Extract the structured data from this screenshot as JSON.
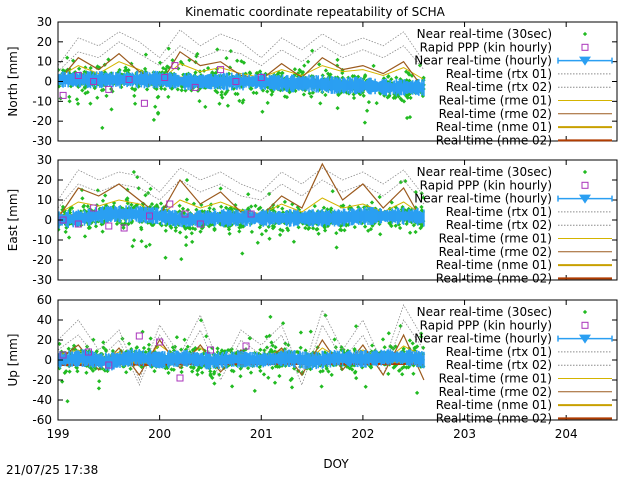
{
  "title": "Kinematic coordinate repeatability of SCHA",
  "xlabel": "DOY",
  "timestamp": "21/07/25 17:38",
  "colors": {
    "near_rt_30s": "#22bb22",
    "rapid_ppp": "#aa33bb",
    "near_rt_hourly": "#2a9ff2",
    "rtx": "#8c8c8c",
    "rme01": "#d4b400",
    "rme02": "#9b5a1e",
    "nme01": "#c8a000",
    "nme02": "#b03c00"
  },
  "legend": [
    {
      "key": "near_rt_30s",
      "label": "Near real-time (30sec)",
      "style": "dots"
    },
    {
      "key": "rapid_ppp",
      "label": "Rapid PPP (kin hourly)",
      "style": "open-square"
    },
    {
      "key": "near_rt_hourly",
      "label": "Near real-time (hourly)",
      "style": "triangle-errorbar"
    },
    {
      "key": "rtx",
      "label": "Real-time (rtx 01)",
      "style": "dotted"
    },
    {
      "key": "rtx",
      "label": "Real-time (rtx 02)",
      "style": "dotted"
    },
    {
      "key": "rme01",
      "label": "Real-time (rme 01)",
      "style": "thin-line"
    },
    {
      "key": "rme02",
      "label": "Real-time (rme 02)",
      "style": "thin-line"
    },
    {
      "key": "nme01",
      "label": "Real-time (nme 01)",
      "style": "thick-line"
    },
    {
      "key": "nme02",
      "label": "Real-time (nme 02)",
      "style": "thick-line"
    }
  ],
  "chart_data": [
    {
      "type": "scatter",
      "panel": "north",
      "ylabel": "North [mm]",
      "xlim": [
        199,
        204.5
      ],
      "ylim": [
        -30,
        30
      ],
      "xticks": [
        "199",
        "200",
        "201",
        "202",
        "203",
        "204"
      ],
      "yticks": [
        "-30",
        "-20",
        "-10",
        "0",
        "10",
        "20",
        "30"
      ],
      "data_end_doy": 202.6,
      "grid": false,
      "legend_position": "top-right",
      "series": [
        {
          "name": "Real-time (rtx 01)",
          "x": [
            199.0,
            199.2,
            199.4,
            199.6,
            199.8,
            200.0,
            200.2,
            200.4,
            200.6,
            200.8,
            201.0,
            201.2,
            201.4,
            201.6,
            201.8,
            202.0,
            202.2,
            202.4,
            202.6
          ],
          "y": [
            8,
            22,
            18,
            25,
            20,
            12,
            26,
            18,
            24,
            20,
            12,
            22,
            16,
            24,
            18,
            22,
            18,
            25,
            10
          ]
        },
        {
          "name": "Real-time (rtx 02)",
          "x": [
            199.0,
            199.2,
            199.4,
            199.6,
            199.8,
            200.0,
            200.2,
            200.4,
            200.6,
            200.8,
            201.0,
            201.2,
            201.4,
            201.6,
            201.8,
            202.0,
            202.2,
            202.4,
            202.6
          ],
          "y": [
            5,
            15,
            12,
            20,
            14,
            8,
            18,
            12,
            16,
            14,
            8,
            16,
            10,
            18,
            12,
            16,
            12,
            18,
            6
          ]
        },
        {
          "name": "Real-time (rme 01)",
          "x": [
            199.0,
            199.2,
            199.4,
            199.6,
            199.8,
            200.0,
            200.2,
            200.4,
            200.6,
            200.8,
            201.0,
            201.2,
            201.4,
            201.6,
            201.8,
            202.0,
            202.2,
            202.4,
            202.6
          ],
          "y": [
            2,
            8,
            4,
            10,
            6,
            0,
            9,
            5,
            7,
            4,
            2,
            6,
            3,
            8,
            5,
            6,
            3,
            7,
            1
          ]
        },
        {
          "name": "Real-time (rme 02)",
          "x": [
            199.0,
            199.2,
            199.4,
            199.6,
            199.8,
            200.0,
            200.2,
            200.4,
            200.6,
            200.8,
            201.0,
            201.2,
            201.4,
            201.6,
            201.8,
            202.0,
            202.2,
            202.4,
            202.6
          ],
          "y": [
            0,
            12,
            6,
            14,
            5,
            -2,
            15,
            8,
            10,
            3,
            1,
            9,
            2,
            12,
            6,
            8,
            4,
            10,
            -4
          ]
        },
        {
          "name": "Real-time (nme 01)",
          "x": [
            199.0,
            199.3,
            199.6,
            199.9,
            200.2,
            200.5,
            200.8,
            201.1,
            201.4,
            201.7,
            202.0,
            202.3,
            202.6
          ],
          "y": [
            1,
            2,
            1,
            0,
            2,
            1,
            0,
            1,
            0,
            -1,
            -2,
            -3,
            -3
          ]
        },
        {
          "name": "Real-time (nme 02)",
          "x": [
            199.0,
            199.3,
            199.6,
            199.9,
            200.2,
            200.5,
            200.8,
            201.1,
            201.4,
            201.7,
            202.0,
            202.3,
            202.6
          ],
          "y": [
            0,
            1,
            0,
            -1,
            1,
            0,
            -1,
            0,
            -1,
            -2,
            -3,
            -4,
            -4
          ]
        },
        {
          "name": "Near real-time (hourly)",
          "x": [
            199.0,
            199.25,
            199.5,
            199.75,
            200.0,
            200.25,
            200.5,
            200.75,
            201.0,
            201.25,
            201.5,
            201.75,
            202.0,
            202.25,
            202.5,
            202.6
          ],
          "y": [
            1,
            1,
            1,
            1,
            1,
            0,
            0,
            0,
            0,
            -1,
            -1,
            -2,
            -2,
            -3,
            -3,
            -3
          ]
        },
        {
          "name": "Rapid PPP (kin hourly)",
          "x": [
            199.05,
            199.2,
            199.35,
            199.5,
            199.7,
            199.85,
            200.05,
            200.15,
            200.35,
            200.6,
            200.75,
            201.0
          ],
          "y": [
            -7,
            3,
            0,
            -4,
            1,
            -11,
            2,
            8,
            -3,
            6,
            0,
            2
          ]
        }
      ]
    },
    {
      "type": "scatter",
      "panel": "east",
      "ylabel": "East [mm]",
      "xlim": [
        199,
        204.5
      ],
      "ylim": [
        -30,
        30
      ],
      "xticks": [
        "199",
        "200",
        "201",
        "202",
        "203",
        "204"
      ],
      "yticks": [
        "-30",
        "-20",
        "-10",
        "0",
        "10",
        "20",
        "30"
      ],
      "data_end_doy": 202.6,
      "grid": false,
      "legend_position": "top-right",
      "series": [
        {
          "name": "Real-time (rtx 01)",
          "x": [
            199.0,
            199.2,
            199.4,
            199.6,
            199.8,
            200.0,
            200.2,
            200.4,
            200.6,
            200.8,
            201.0,
            201.2,
            201.4,
            201.6,
            201.8,
            202.0,
            202.2,
            202.4,
            202.6
          ],
          "y": [
            10,
            25,
            20,
            24,
            22,
            14,
            26,
            20,
            24,
            18,
            14,
            24,
            18,
            26,
            20,
            24,
            18,
            25,
            12
          ]
        },
        {
          "name": "Real-time (rtx 02)",
          "x": [
            199.0,
            199.2,
            199.4,
            199.6,
            199.8,
            200.0,
            200.2,
            200.4,
            200.6,
            200.8,
            201.0,
            201.2,
            201.4,
            201.6,
            201.8,
            202.0,
            202.2,
            202.4,
            202.6
          ],
          "y": [
            6,
            18,
            14,
            18,
            16,
            10,
            20,
            14,
            18,
            12,
            10,
            18,
            12,
            20,
            14,
            18,
            12,
            20,
            8
          ]
        },
        {
          "name": "Real-time (rme 01)",
          "x": [
            199.0,
            199.2,
            199.4,
            199.6,
            199.8,
            200.0,
            200.2,
            200.4,
            200.6,
            200.8,
            201.0,
            201.2,
            201.4,
            201.6,
            201.8,
            202.0,
            202.2,
            202.4,
            202.6
          ],
          "y": [
            3,
            9,
            7,
            10,
            8,
            2,
            10,
            6,
            9,
            5,
            3,
            8,
            4,
            11,
            6,
            8,
            4,
            9,
            2
          ]
        },
        {
          "name": "Real-time (rme 02)",
          "x": [
            199.0,
            199.2,
            199.4,
            199.6,
            199.8,
            200.0,
            200.2,
            200.4,
            200.6,
            200.8,
            201.0,
            201.2,
            201.4,
            201.6,
            201.8,
            202.0,
            202.2,
            202.4,
            202.6
          ],
          "y": [
            1,
            16,
            12,
            18,
            10,
            2,
            20,
            8,
            14,
            4,
            2,
            12,
            6,
            28,
            10,
            18,
            6,
            16,
            -2
          ]
        },
        {
          "name": "Real-time (nme 01)",
          "x": [
            199.0,
            199.3,
            199.6,
            199.9,
            200.2,
            200.5,
            200.8,
            201.1,
            201.4,
            201.7,
            202.0,
            202.3,
            202.6
          ],
          "y": [
            2,
            3,
            4,
            3,
            2,
            3,
            2,
            1,
            2,
            1,
            2,
            2,
            1
          ]
        },
        {
          "name": "Real-time (nme 02)",
          "x": [
            199.0,
            199.3,
            199.6,
            199.9,
            200.2,
            200.5,
            200.8,
            201.1,
            201.4,
            201.7,
            202.0,
            202.3,
            202.6
          ],
          "y": [
            1,
            2,
            3,
            2,
            1,
            2,
            1,
            0,
            1,
            0,
            1,
            1,
            0
          ]
        },
        {
          "name": "Near real-time (hourly)",
          "x": [
            199.0,
            199.25,
            199.5,
            199.75,
            200.0,
            200.25,
            200.5,
            200.75,
            201.0,
            201.25,
            201.5,
            201.75,
            202.0,
            202.25,
            202.5,
            202.6
          ],
          "y": [
            0,
            1,
            3,
            3,
            2,
            0,
            1,
            1,
            1,
            1,
            1,
            1,
            2,
            2,
            2,
            1
          ]
        },
        {
          "name": "Rapid PPP (kin hourly)",
          "x": [
            199.05,
            199.2,
            199.35,
            199.5,
            199.65,
            199.9,
            200.1,
            200.25,
            200.4,
            200.9
          ],
          "y": [
            0,
            -2,
            6,
            -3,
            -4,
            2,
            8,
            3,
            -2,
            3
          ]
        }
      ]
    },
    {
      "type": "scatter",
      "panel": "up",
      "ylabel": "Up [mm]",
      "xlim": [
        199,
        204.5
      ],
      "ylim": [
        -60,
        60
      ],
      "xticks": [
        "199",
        "200",
        "201",
        "202",
        "203",
        "204"
      ],
      "yticks": [
        "-60",
        "-40",
        "-20",
        "0",
        "20",
        "40",
        "60"
      ],
      "data_end_doy": 202.6,
      "grid": false,
      "legend_position": "top-right",
      "series": [
        {
          "name": "Real-time (rtx 01)",
          "x": [
            199.0,
            199.2,
            199.4,
            199.6,
            199.8,
            200.0,
            200.2,
            200.4,
            200.6,
            200.8,
            201.0,
            201.2,
            201.4,
            201.6,
            201.8,
            202.0,
            202.2,
            202.4,
            202.6
          ],
          "y": [
            20,
            40,
            10,
            30,
            -20,
            35,
            5,
            45,
            -10,
            30,
            15,
            35,
            -15,
            50,
            10,
            40,
            -5,
            55,
            20
          ]
        },
        {
          "name": "Real-time (rtx 02)",
          "x": [
            199.0,
            199.2,
            199.4,
            199.6,
            199.8,
            200.0,
            200.2,
            200.4,
            200.6,
            200.8,
            201.0,
            201.2,
            201.4,
            201.6,
            201.8,
            202.0,
            202.2,
            202.4,
            202.6
          ],
          "y": [
            10,
            25,
            0,
            20,
            -25,
            25,
            -5,
            30,
            -20,
            20,
            5,
            25,
            -25,
            35,
            0,
            25,
            -15,
            40,
            10
          ]
        },
        {
          "name": "Real-time (rme 01)",
          "x": [
            199.0,
            199.2,
            199.4,
            199.6,
            199.8,
            200.0,
            200.2,
            200.4,
            200.6,
            200.8,
            201.0,
            201.2,
            201.4,
            201.6,
            201.8,
            202.0,
            202.2,
            202.4,
            202.6
          ],
          "y": [
            5,
            10,
            -2,
            8,
            -5,
            15,
            0,
            12,
            -4,
            6,
            2,
            10,
            -6,
            12,
            0,
            10,
            -2,
            14,
            4
          ]
        },
        {
          "name": "Real-time (rme 02)",
          "x": [
            199.0,
            199.2,
            199.4,
            199.6,
            199.8,
            200.0,
            200.2,
            200.4,
            200.6,
            200.8,
            201.0,
            201.2,
            201.4,
            201.6,
            201.8,
            202.0,
            202.2,
            202.4,
            202.6
          ],
          "y": [
            0,
            15,
            -10,
            12,
            -15,
            20,
            -8,
            15,
            -12,
            10,
            -5,
            12,
            -15,
            20,
            -10,
            15,
            -15,
            25,
            -20
          ]
        },
        {
          "name": "Real-time (nme 01)",
          "x": [
            199.0,
            199.3,
            199.6,
            199.9,
            200.2,
            200.5,
            200.8,
            201.1,
            201.4,
            201.7,
            202.0,
            202.3,
            202.6
          ],
          "y": [
            -3,
            -3,
            -2,
            -3,
            -2,
            -2,
            -2,
            -2,
            -2,
            -2,
            -2,
            -2,
            -2
          ]
        },
        {
          "name": "Real-time (nme 02)",
          "x": [
            199.0,
            199.3,
            199.6,
            199.9,
            200.2,
            200.5,
            200.8,
            201.1,
            201.4,
            201.7,
            202.0,
            202.3,
            202.6
          ],
          "y": [
            -5,
            -5,
            -4,
            -5,
            -4,
            -4,
            -4,
            -4,
            -4,
            -4,
            -4,
            -4,
            -4
          ]
        },
        {
          "name": "Near real-time (hourly)",
          "x": [
            199.0,
            199.25,
            199.5,
            199.75,
            200.0,
            200.25,
            200.5,
            200.75,
            201.0,
            201.25,
            201.5,
            201.75,
            202.0,
            202.25,
            202.5,
            202.6
          ],
          "y": [
            0,
            2,
            -2,
            3,
            0,
            2,
            -1,
            1,
            0,
            2,
            -1,
            2,
            1,
            3,
            2,
            0
          ]
        },
        {
          "name": "Rapid PPP (kin hourly)",
          "x": [
            199.05,
            199.3,
            199.5,
            199.8,
            200.0,
            200.2,
            200.5,
            200.85
          ],
          "y": [
            5,
            8,
            -5,
            24,
            18,
            -18,
            10,
            14
          ]
        }
      ]
    }
  ]
}
